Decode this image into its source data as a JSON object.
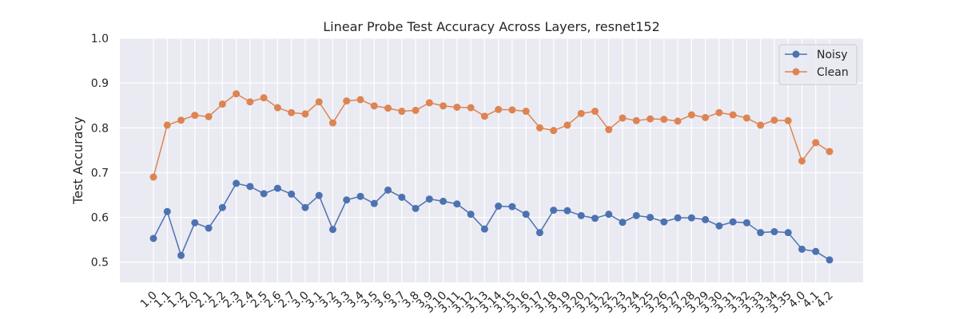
{
  "chart_data": {
    "type": "line",
    "title": "Linear Probe Test Accuracy Across Layers, resnet152",
    "xlabel": "",
    "ylabel": "Test Accuracy",
    "ylim": [
      0.455,
      1.0
    ],
    "yticks": [
      "0.5",
      "0.6",
      "0.7",
      "0.8",
      "0.9",
      "1.0"
    ],
    "grid": true,
    "legend_position": "top-right",
    "categories": [
      "1.0",
      "1.1",
      "1.2",
      "2.0",
      "2.1",
      "2.2",
      "2.3",
      "2.4",
      "2.5",
      "2.6",
      "2.7",
      "3.0",
      "3.1",
      "3.2",
      "3.3",
      "3.4",
      "3.5",
      "3.6",
      "3.7",
      "3.8",
      "3.9",
      "3.10",
      "3.11",
      "3.12",
      "3.13",
      "3.14",
      "3.15",
      "3.16",
      "3.17",
      "3.18",
      "3.19",
      "3.20",
      "3.21",
      "3.22",
      "3.23",
      "3.24",
      "3.25",
      "3.26",
      "3.27",
      "3.28",
      "3.29",
      "3.30",
      "3.31",
      "3.32",
      "3.33",
      "3.34",
      "3.35",
      "4.0",
      "4.1",
      "4.2"
    ],
    "series": [
      {
        "name": "Noisy",
        "color": "#4c72b0",
        "values": [
          0.553,
          0.613,
          0.515,
          0.588,
          0.576,
          0.622,
          0.676,
          0.669,
          0.653,
          0.665,
          0.652,
          0.622,
          0.649,
          0.573,
          0.639,
          0.647,
          0.631,
          0.661,
          0.645,
          0.62,
          0.641,
          0.636,
          0.63,
          0.607,
          0.574,
          0.625,
          0.624,
          0.607,
          0.566,
          0.616,
          0.615,
          0.604,
          0.598,
          0.607,
          0.589,
          0.604,
          0.6,
          0.59,
          0.599,
          0.599,
          0.595,
          0.581,
          0.59,
          0.588,
          0.566,
          0.568,
          0.566,
          0.529,
          0.524,
          0.505
        ]
      },
      {
        "name": "Clean",
        "color": "#dd8452",
        "values": [
          0.69,
          0.806,
          0.817,
          0.828,
          0.825,
          0.853,
          0.876,
          0.858,
          0.867,
          0.845,
          0.834,
          0.831,
          0.858,
          0.811,
          0.86,
          0.863,
          0.849,
          0.844,
          0.837,
          0.839,
          0.856,
          0.849,
          0.846,
          0.845,
          0.826,
          0.841,
          0.84,
          0.837,
          0.8,
          0.794,
          0.806,
          0.832,
          0.837,
          0.796,
          0.822,
          0.816,
          0.82,
          0.819,
          0.815,
          0.829,
          0.823,
          0.834,
          0.829,
          0.822,
          0.806,
          0.817,
          0.816,
          0.726,
          0.767,
          0.747
        ]
      }
    ]
  }
}
